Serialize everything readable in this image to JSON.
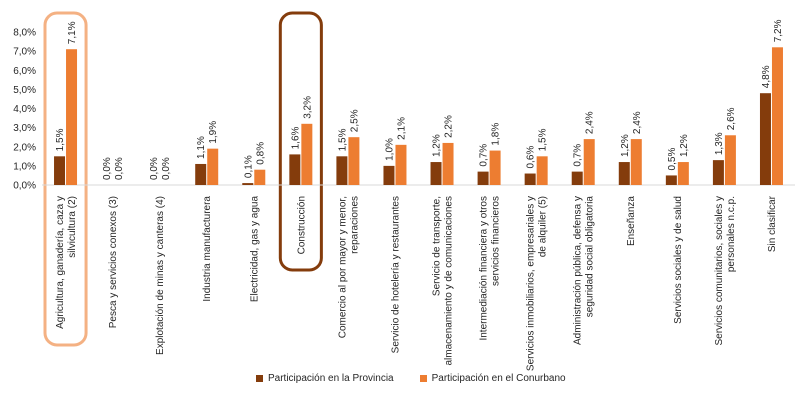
{
  "chart_data": {
    "type": "bar",
    "categories": [
      [
        "Agricultura, ganadería, caza y",
        "silvicultura (2)"
      ],
      [
        "Pesca y servicios conexos (3)"
      ],
      [
        "Explotación de minas y canteras (4)"
      ],
      [
        "Industria manufacturera"
      ],
      [
        "Electricidad, gas y agua"
      ],
      [
        "Construcción"
      ],
      [
        "Comercio al por mayor y menor,",
        "reparaciones"
      ],
      [
        "Servicio de hotelería y restaurantes"
      ],
      [
        "Servicio de transporte,",
        "almacenamiento y de comunicaciones"
      ],
      [
        "Intermediación financiera y otros",
        "servicios financieros"
      ],
      [
        "Servicios inmobiliarios, empresariales y",
        "de alquiler (5)"
      ],
      [
        "Administración pública, defensa y",
        "seguridad social obligatoria"
      ],
      [
        "Enseñanza"
      ],
      [
        "Servicios sociales y de salud"
      ],
      [
        "Servicios comunitarios, sociales y",
        "personales n.c.p."
      ],
      [
        "Sin clasificar"
      ]
    ],
    "series": [
      {
        "name": "Participación en la Provincia",
        "color": "#843C0C",
        "values": [
          1.5,
          0.0,
          0.0,
          1.1,
          0.1,
          1.6,
          1.5,
          1.0,
          1.2,
          0.7,
          0.6,
          0.7,
          1.2,
          0.5,
          1.3,
          4.8
        ],
        "labels": [
          "1,5%",
          "0,0%",
          "0,0%",
          "1,1%",
          "0,1%",
          "1,6%",
          "1,5%",
          "1,0%",
          "1,2%",
          "0,7%",
          "0,6%",
          "0,7%",
          "1,2%",
          "0,5%",
          "1,3%",
          "4,8%"
        ]
      },
      {
        "name": "Participación en el Conurbano",
        "color": "#ED7D31",
        "values": [
          7.1,
          0.0,
          0.0,
          1.9,
          0.8,
          3.2,
          2.5,
          2.1,
          2.2,
          1.8,
          1.5,
          2.4,
          2.4,
          1.2,
          2.6,
          7.2
        ],
        "labels": [
          "7,1%",
          "0,0%",
          "0,0%",
          "1,9%",
          "0,8%",
          "3,2%",
          "2,5%",
          "2,1%",
          "2,2%",
          "1,8%",
          "1,5%",
          "2,4%",
          "2,4%",
          "1,2%",
          "2,6%",
          "7,2%"
        ]
      }
    ],
    "yticks": [
      "0,0%",
      "1,0%",
      "2,0%",
      "3,0%",
      "4,0%",
      "5,0%",
      "6,0%",
      "7,0%",
      "8,0%"
    ],
    "ylim": [
      0,
      8
    ],
    "grid": false,
    "legend_position": "bottom",
    "highlights": [
      {
        "category_index": 0,
        "color": "#F4B183"
      },
      {
        "category_index": 5,
        "color": "#843C0C"
      }
    ]
  }
}
